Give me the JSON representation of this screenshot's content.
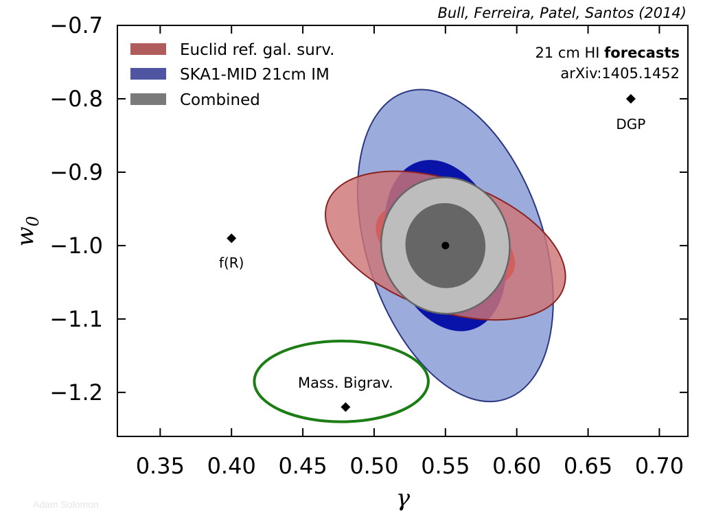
{
  "citation": "Bull, Ferreira, Patel, Santos (2014)",
  "watermark": "Adam Solomon",
  "info": {
    "line1_prefix": "21 cm HI ",
    "line1_bold": "forecasts",
    "line2": "arXiv:1405.1452"
  },
  "colors": {
    "euclid_fill": "#cd7575",
    "euclid_edge": "#8b2222",
    "euclid_inner": "#dd0000",
    "ska_fill": "#9aabdc",
    "ska_edge": "#2b3680",
    "ska_inner": "#0a13a8",
    "combined_outer": "#bdbdbd",
    "combined_inner": "#666666",
    "combined_edge": "#666666",
    "bigrav_edge": "#1c7d15"
  },
  "chart_data": {
    "type": "scatter",
    "xlabel": "γ",
    "ylabel_main": "w",
    "ylabel_sub": "0",
    "xlim": [
      0.32,
      0.72
    ],
    "ylim": [
      -1.26,
      -0.7
    ],
    "xticks": [
      0.35,
      0.4,
      0.45,
      0.5,
      0.55,
      0.6,
      0.65,
      0.7
    ],
    "xtick_labels": [
      "0.35",
      "0.40",
      "0.45",
      "0.50",
      "0.55",
      "0.60",
      "0.65",
      "0.70"
    ],
    "yticks": [
      -0.7,
      -0.8,
      -0.9,
      -1.0,
      -1.1,
      -1.2
    ],
    "ytick_labels": [
      "−0.7",
      "−0.8",
      "−0.9",
      "−1.0",
      "−1.1",
      "−1.2"
    ],
    "legend_placement": "top-left",
    "legend": [
      {
        "label": "Euclid ref. gal. surv.",
        "color": "#b05c5c"
      },
      {
        "label": "SKA1-MID 21cm IM",
        "color": "#4f55a0"
      },
      {
        "label": "Combined",
        "color": "#7a7a7a"
      }
    ],
    "fiducial": {
      "x": 0.55,
      "y": -1.0
    },
    "points": [
      {
        "name": "DGP",
        "x": 0.68,
        "y": -0.8
      },
      {
        "name": "f(R)",
        "x": 0.4,
        "y": -0.99
      },
      {
        "name": "Mass. Bigrav.",
        "x": 0.48,
        "y": -1.22
      }
    ],
    "ellipses": [
      {
        "series": "SKA1-MID 21cm IM",
        "level": "2-sigma",
        "cx": 0.557,
        "cy": -1.0,
        "sx": 0.062,
        "sy": 0.22,
        "rot_deg": 18
      },
      {
        "series": "Euclid ref. gal. surv.",
        "level": "1-sigma",
        "cx": 0.55,
        "cy": -1.0,
        "sx": 0.051,
        "sy": 0.053,
        "rot_deg": -20
      },
      {
        "series": "SKA1-MID 21cm IM",
        "level": "1-sigma",
        "cx": 0.55,
        "cy": -1.0,
        "sx": 0.04,
        "sy": 0.12,
        "rot_deg": 18
      },
      {
        "series": "Euclid ref. gal. surv.",
        "level": "2-sigma",
        "cx": 0.55,
        "cy": -1.0,
        "sx": 0.088,
        "sy": 0.088,
        "rot_deg": -20
      },
      {
        "series": "Combined",
        "level": "2-sigma",
        "cx": 0.55,
        "cy": -1.0,
        "sx": 0.045,
        "sy": 0.093,
        "rot_deg": 10
      },
      {
        "series": "Combined",
        "level": "1-sigma",
        "cx": 0.55,
        "cy": -1.0,
        "sx": 0.028,
        "sy": 0.058,
        "rot_deg": 10
      },
      {
        "series": "Mass. Bigrav.",
        "level": "region",
        "cx": 0.477,
        "cy": -1.185,
        "sx": 0.061,
        "sy": 0.055,
        "rot_deg": 0
      }
    ]
  }
}
